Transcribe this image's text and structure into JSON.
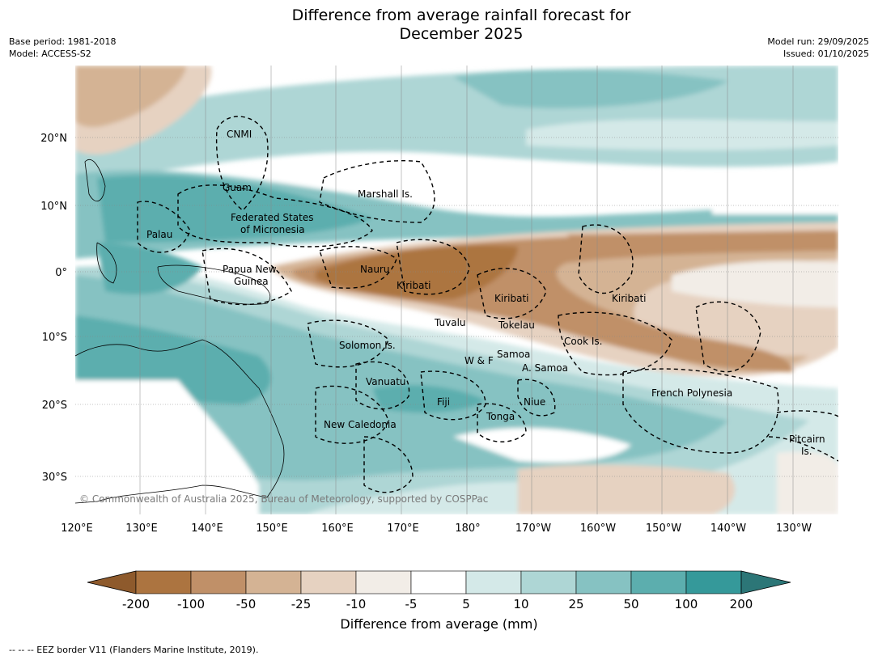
{
  "header": {
    "title_line1": "Difference from average rainfall forecast for",
    "title_line2": "December 2025",
    "base_period": "Base period: 1981-2018",
    "model": "Model: ACCESS-S2",
    "model_run": "Model run: 29/09/2025",
    "issued": "Issued: 01/10/2025"
  },
  "map": {
    "lon_ticks": [
      "120°E",
      "130°E",
      "140°E",
      "150°E",
      "160°E",
      "170°E",
      "180°",
      "170°W",
      "160°W",
      "150°W",
      "140°W",
      "130°W"
    ],
    "lat_ticks": [
      "20°N",
      "10°N",
      "0°",
      "10°S",
      "20°S",
      "30°S"
    ],
    "copyright": "© Commonwealth of Australia 2025, Bureau of Meteorology, supported by COSPPac",
    "regions": [
      {
        "id": "cnmi",
        "label": "CNMI"
      },
      {
        "id": "guam",
        "label": "Guam"
      },
      {
        "id": "marshall",
        "label": "Marshall Is."
      },
      {
        "id": "fsm1",
        "label": "Federated States"
      },
      {
        "id": "fsm2",
        "label": "of Micronesia"
      },
      {
        "id": "palau",
        "label": "Palau"
      },
      {
        "id": "png1",
        "label": "Papua New"
      },
      {
        "id": "png2",
        "label": "Guinea"
      },
      {
        "id": "nauru",
        "label": "Nauru"
      },
      {
        "id": "kiribati-w",
        "label": "Kiribati"
      },
      {
        "id": "kiribati-c",
        "label": "Kiribati"
      },
      {
        "id": "kiribati-e",
        "label": "Kiribati"
      },
      {
        "id": "tuvalu",
        "label": "Tuvalu"
      },
      {
        "id": "tokelau",
        "label": "Tokelau"
      },
      {
        "id": "cook",
        "label": "Cook Is."
      },
      {
        "id": "solomon",
        "label": "Solomon Is."
      },
      {
        "id": "wf",
        "label": "W & F"
      },
      {
        "id": "samoa",
        "label": "Samoa"
      },
      {
        "id": "asamoa",
        "label": "A. Samoa"
      },
      {
        "id": "vanuatu",
        "label": "Vanuatu"
      },
      {
        "id": "fiji",
        "label": "Fiji"
      },
      {
        "id": "niue",
        "label": "Niue"
      },
      {
        "id": "tonga",
        "label": "Tonga"
      },
      {
        "id": "newcal",
        "label": "New Caledonia"
      },
      {
        "id": "frpoly",
        "label": "French Polynesia"
      },
      {
        "id": "pitcairn1",
        "label": "Pitcairn"
      },
      {
        "id": "pitcairn2",
        "label": "Is."
      }
    ]
  },
  "colorbar": {
    "title": "Difference from average (mm)",
    "ticks": [
      "-200",
      "-100",
      "-50",
      "-25",
      "-10",
      "-5",
      "5",
      "10",
      "25",
      "50",
      "100",
      "200"
    ],
    "colors": [
      "#8e5a2c",
      "#ac7440",
      "#c09068",
      "#d4b394",
      "#e6d2c1",
      "#f2ede7",
      "#ffffff",
      "#d4e9e8",
      "#aed6d5",
      "#86c2c2",
      "#5caeae",
      "#35999a",
      "#2c7677"
    ]
  },
  "footnote": "--  --  -- EEZ border V11 (Flanders Marine Institute, 2019)."
}
